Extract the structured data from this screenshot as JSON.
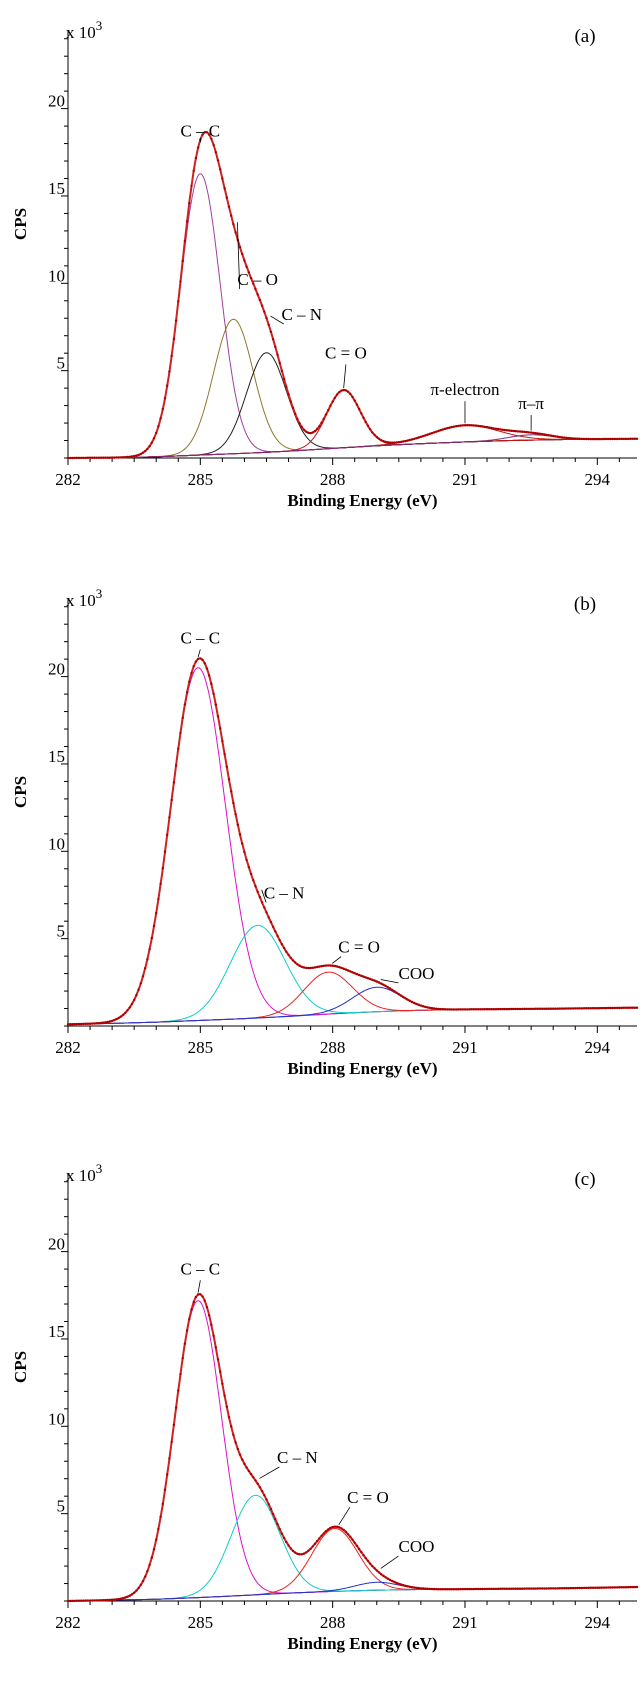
{
  "chart_data": [
    {
      "type": "line",
      "panel_label": "(a)",
      "xlabel": "Binding Energy (eV)",
      "ylabel": "CPS",
      "y_multiplier": "x 10",
      "y_multiplier_exp": "3",
      "xlim": [
        282,
        294.9
      ],
      "ylim": [
        0,
        24.5
      ],
      "x_ticks": [
        "282",
        "285",
        "288",
        "291",
        "294"
      ],
      "y_ticks": [
        "5",
        "10",
        "15",
        "20"
      ],
      "background": {
        "x": [
          282,
          283,
          284,
          284.8,
          285.5,
          286.3,
          287.2,
          288,
          289,
          290,
          291,
          292,
          293,
          294,
          294.9
        ],
        "y": [
          0.0,
          0.02,
          0.07,
          0.15,
          0.22,
          0.3,
          0.42,
          0.55,
          0.7,
          0.82,
          0.92,
          1.0,
          1.05,
          1.08,
          1.1
        ]
      },
      "components": [
        {
          "label": "C – C",
          "center": 285.0,
          "height": 16.1,
          "sigma": 0.45,
          "color": "#a040a0",
          "label_x": 285.0,
          "label_y": 18.4,
          "line": true
        },
        {
          "label": "C – O",
          "center": 285.75,
          "height": 7.7,
          "sigma": 0.45,
          "color": "#8a7a2a",
          "label_x": 286.3,
          "label_y": 9.9,
          "line": true
        },
        {
          "label": "C – N",
          "center": 286.5,
          "height": 5.7,
          "sigma": 0.45,
          "color": "#222222",
          "label_x": 287.3,
          "label_y": 7.9,
          "line": true
        },
        {
          "label": "C = O",
          "center": 288.25,
          "height": 3.3,
          "sigma": 0.38,
          "color": "#cc1111",
          "label_x": 288.3,
          "label_y": 5.7,
          "line": true
        },
        {
          "label": "π-electron",
          "center": 291.0,
          "height": 0.95,
          "sigma": 0.75,
          "color": "#cc1111",
          "label_x": 291.0,
          "label_y": 3.6,
          "line": true
        },
        {
          "label": "π–π",
          "center": 292.5,
          "height": 0.3,
          "sigma": 0.5,
          "color": "#7a2a7a",
          "label_x": 292.5,
          "label_y": 2.8,
          "line": true
        }
      ]
    },
    {
      "type": "line",
      "panel_label": "(b)",
      "xlabel": "Binding Energy (eV)",
      "ylabel": "CPS",
      "y_multiplier": "x 10",
      "y_multiplier_exp": "3",
      "xlim": [
        282,
        294.9
      ],
      "ylim": [
        0,
        24.5
      ],
      "x_ticks": [
        "282",
        "285",
        "288",
        "291",
        "294"
      ],
      "y_ticks": [
        "5",
        "10",
        "15",
        "20"
      ],
      "background": {
        "x": [
          282,
          283,
          284,
          285,
          286,
          287,
          288,
          289,
          290,
          291,
          292,
          293,
          294,
          294.9
        ],
        "y": [
          0.1,
          0.15,
          0.22,
          0.32,
          0.42,
          0.55,
          0.7,
          0.82,
          0.9,
          0.95,
          0.97,
          0.99,
          1.02,
          1.05
        ]
      },
      "components": [
        {
          "label": "C – C",
          "center": 284.95,
          "height": 20.2,
          "sigma": 0.62,
          "color": "#dd11cc",
          "label_x": 285.0,
          "label_y": 21.9,
          "line": true
        },
        {
          "label": "C – N",
          "center": 286.3,
          "height": 5.3,
          "sigma": 0.62,
          "color": "#11cccc",
          "label_x": 286.9,
          "label_y": 7.3,
          "line": true
        },
        {
          "label": "C = O",
          "center": 287.9,
          "height": 2.4,
          "sigma": 0.55,
          "color": "#ee2222",
          "label_x": 288.6,
          "label_y": 4.2,
          "line": true
        },
        {
          "label": "COO",
          "center": 289.0,
          "height": 1.4,
          "sigma": 0.55,
          "color": "#2233cc",
          "label_x": 289.9,
          "label_y": 2.7,
          "line": true
        }
      ]
    },
    {
      "type": "line",
      "panel_label": "(c)",
      "xlabel": "Binding Energy (eV)",
      "ylabel": "CPS",
      "y_multiplier": "x 10",
      "y_multiplier_exp": "3",
      "xlim": [
        282,
        294.9
      ],
      "ylim": [
        0,
        24.5
      ],
      "x_ticks": [
        "282",
        "285",
        "288",
        "291",
        "294"
      ],
      "y_ticks": [
        "5",
        "10",
        "15",
        "20"
      ],
      "background": {
        "x": [
          282,
          283,
          284,
          285,
          286,
          287,
          288,
          289,
          290,
          291,
          292,
          293,
          294,
          294.9
        ],
        "y": [
          0.0,
          0.05,
          0.1,
          0.2,
          0.32,
          0.45,
          0.55,
          0.62,
          0.66,
          0.68,
          0.7,
          0.72,
          0.76,
          0.8
        ]
      },
      "components": [
        {
          "label": "C – C",
          "center": 284.95,
          "height": 17.0,
          "sigma": 0.53,
          "color": "#dd11cc",
          "label_x": 285.0,
          "label_y": 18.7,
          "line": true
        },
        {
          "label": "C – N",
          "center": 286.25,
          "height": 5.7,
          "sigma": 0.55,
          "color": "#11cccc",
          "label_x": 287.2,
          "label_y": 7.9,
          "line": true
        },
        {
          "label": "C = O",
          "center": 288.05,
          "height": 3.6,
          "sigma": 0.52,
          "color": "#ee2222",
          "label_x": 288.8,
          "label_y": 5.6,
          "line": true
        },
        {
          "label": "COO",
          "center": 289.0,
          "height": 0.45,
          "sigma": 0.5,
          "color": "#2233cc",
          "label_x": 289.9,
          "label_y": 2.8,
          "line": true
        }
      ]
    }
  ]
}
